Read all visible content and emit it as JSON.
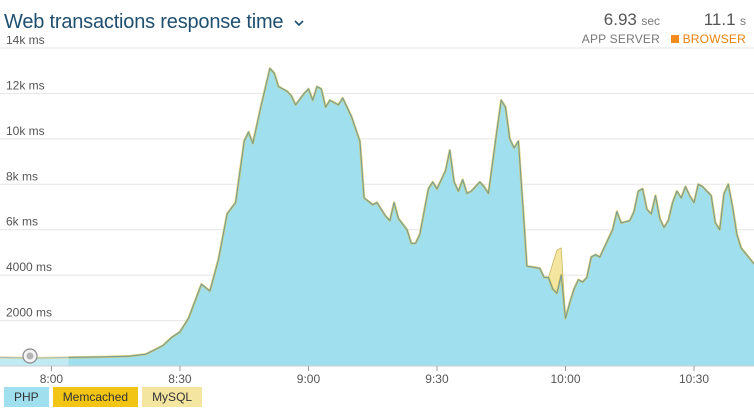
{
  "header": {
    "title": "Web transactions response time",
    "app_server": {
      "value": "6.93",
      "unit": "sec",
      "label": "APP SERVER"
    },
    "browser": {
      "value": "11.1",
      "unit": "s",
      "label": "BROWSER",
      "color": "#f28c1c"
    }
  },
  "chart_data": {
    "type": "area",
    "title": "Web transactions response time",
    "xlabel": "",
    "ylabel": "",
    "ylim": [
      0,
      14000
    ],
    "y_ticks": [
      {
        "value": 2000,
        "label": "2000 ms"
      },
      {
        "value": 4000,
        "label": "4000 ms"
      },
      {
        "value": 6000,
        "label": "6k ms"
      },
      {
        "value": 8000,
        "label": "8k ms"
      },
      {
        "value": 10000,
        "label": "10k ms"
      },
      {
        "value": 12000,
        "label": "12k ms"
      },
      {
        "value": 14000,
        "label": "14k ms"
      }
    ],
    "x_range": [
      "07:48",
      "10:44"
    ],
    "x_ticks": [
      "8:00",
      "8:30",
      "9:00",
      "9:30",
      "10:00",
      "10:30"
    ],
    "grid": true,
    "legend_placement": "bottom-left",
    "series": [
      {
        "name": "PHP",
        "color": "#9fdfee",
        "stroke": "#6f9a9a",
        "values": [
          [
            "07:48",
            380
          ],
          [
            "07:56",
            350
          ],
          [
            "08:04",
            380
          ],
          [
            "08:12",
            400
          ],
          [
            "08:18",
            430
          ],
          [
            "08:22",
            520
          ],
          [
            "08:24",
            700
          ],
          [
            "08:26",
            900
          ],
          [
            "08:28",
            1250
          ],
          [
            "08:30",
            1500
          ],
          [
            "08:32",
            2100
          ],
          [
            "08:34",
            3100
          ],
          [
            "08:35",
            3600
          ],
          [
            "08:37",
            3300
          ],
          [
            "08:39",
            4700
          ],
          [
            "08:41",
            6700
          ],
          [
            "08:43",
            7200
          ],
          [
            "08:45",
            9900
          ],
          [
            "08:46",
            10300
          ],
          [
            "08:47",
            9800
          ],
          [
            "08:49",
            11500
          ],
          [
            "08:51",
            13100
          ],
          [
            "08:52",
            12900
          ],
          [
            "08:53",
            12300
          ],
          [
            "08:55",
            12100
          ],
          [
            "08:56",
            11900
          ],
          [
            "08:57",
            11500
          ],
          [
            "08:59",
            12000
          ],
          [
            "09:00",
            12200
          ],
          [
            "09:01",
            11700
          ],
          [
            "09:02",
            12300
          ],
          [
            "09:03",
            12200
          ],
          [
            "09:04",
            11400
          ],
          [
            "09:05",
            11700
          ],
          [
            "09:07",
            11500
          ],
          [
            "09:08",
            11800
          ],
          [
            "09:10",
            11000
          ],
          [
            "09:12",
            9900
          ],
          [
            "09:13",
            7400
          ],
          [
            "09:15",
            7100
          ],
          [
            "09:16",
            7200
          ],
          [
            "09:18",
            6600
          ],
          [
            "09:19",
            6400
          ],
          [
            "09:20",
            7200
          ],
          [
            "09:21",
            6500
          ],
          [
            "09:23",
            6000
          ],
          [
            "09:24",
            5400
          ],
          [
            "09:25",
            5400
          ],
          [
            "09:26",
            5800
          ],
          [
            "09:28",
            7800
          ],
          [
            "09:29",
            8100
          ],
          [
            "09:30",
            7800
          ],
          [
            "09:32",
            8600
          ],
          [
            "09:33",
            9500
          ],
          [
            "09:34",
            8100
          ],
          [
            "09:35",
            7700
          ],
          [
            "09:36",
            8200
          ],
          [
            "09:37",
            7600
          ],
          [
            "09:38",
            7700
          ],
          [
            "09:40",
            8100
          ],
          [
            "09:41",
            7900
          ],
          [
            "09:42",
            7600
          ],
          [
            "09:44",
            10400
          ],
          [
            "09:45",
            11700
          ],
          [
            "09:46",
            11400
          ],
          [
            "09:47",
            10000
          ],
          [
            "09:48",
            9600
          ],
          [
            "09:49",
            9900
          ],
          [
            "09:50",
            7200
          ],
          [
            "09:51",
            4400
          ],
          [
            "09:54",
            4300
          ],
          [
            "09:55",
            3900
          ],
          [
            "09:56",
            3900
          ],
          [
            "09:57",
            3400
          ],
          [
            "09:58",
            3200
          ],
          [
            "09:59",
            4000
          ],
          [
            "10:00",
            2100
          ],
          [
            "10:01",
            2800
          ],
          [
            "10:02",
            3400
          ],
          [
            "10:03",
            3800
          ],
          [
            "10:04",
            3700
          ],
          [
            "10:05",
            3900
          ],
          [
            "10:06",
            4800
          ],
          [
            "10:07",
            4900
          ],
          [
            "10:08",
            4800
          ],
          [
            "10:09",
            5200
          ],
          [
            "10:10",
            5600
          ],
          [
            "10:11",
            6000
          ],
          [
            "10:12",
            6800
          ],
          [
            "10:13",
            6300
          ],
          [
            "10:15",
            6400
          ],
          [
            "10:16",
            6800
          ],
          [
            "10:17",
            7700
          ],
          [
            "10:18",
            7800
          ],
          [
            "10:19",
            6900
          ],
          [
            "10:20",
            6700
          ],
          [
            "10:21",
            7500
          ],
          [
            "10:22",
            6500
          ],
          [
            "10:23",
            6100
          ],
          [
            "10:24",
            6400
          ],
          [
            "10:25",
            7200
          ],
          [
            "10:26",
            7700
          ],
          [
            "10:27",
            7400
          ],
          [
            "10:28",
            7900
          ],
          [
            "10:29",
            7500
          ],
          [
            "10:30",
            7200
          ],
          [
            "10:31",
            8000
          ],
          [
            "10:32",
            7900
          ],
          [
            "10:34",
            7500
          ],
          [
            "10:35",
            6300
          ],
          [
            "10:36",
            6000
          ],
          [
            "10:37",
            7600
          ],
          [
            "10:38",
            8000
          ],
          [
            "10:39",
            7000
          ],
          [
            "10:40",
            5800
          ],
          [
            "10:41",
            5200
          ],
          [
            "10:44",
            4500
          ]
        ]
      },
      {
        "name": "Memcached",
        "color": "#f2c413",
        "values": []
      },
      {
        "name": "MySQL",
        "color": "#f4e6a0",
        "values": []
      }
    ],
    "annotations": [
      {
        "series": "MySQL",
        "type": "spike",
        "points": [
          [
            "09:56",
            3900
          ],
          [
            "09:58",
            5100
          ],
          [
            "09:59",
            5200
          ],
          [
            "10:00",
            2100
          ]
        ]
      }
    ]
  },
  "legend": {
    "items": [
      {
        "name": "PHP",
        "label": "PHP",
        "color": "#9fdfee"
      },
      {
        "name": "Memcached",
        "label": "Memcached",
        "color": "#f2c413"
      },
      {
        "name": "MySQL",
        "label": "MySQL",
        "color": "#f4e6a0"
      }
    ]
  },
  "icons": {
    "title_dropdown": "chevron-down-icon",
    "deployment_marker": "slider-handle-icon"
  }
}
